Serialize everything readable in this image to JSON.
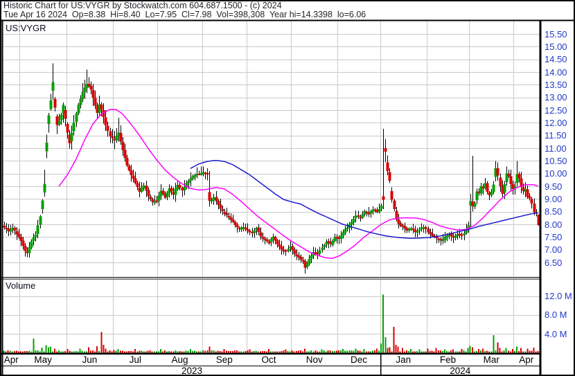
{
  "header": {
    "line1": "Historic Chart for US:VYGR by Stockwatch.com 604.687.1500 - (c) 2024",
    "line2": "Tue Apr 16 2024  Op=8.38  Hi=8.40  Lo=7.95  Cl=7.98  Vol=398,308  Year hi=14.3398  lo=6.06"
  },
  "quote": {
    "date": "Tue Apr 16 2024",
    "open": "8.38",
    "high": "8.40",
    "low": "7.95",
    "close": "7.98",
    "volume": "398,308",
    "year_high": "14.3398",
    "year_low": "6.06"
  },
  "chart": {
    "symbol_label": "US:VYGR",
    "volume_label": "Volume"
  },
  "chart_data": {
    "type": "candlestick",
    "title": "Historic Chart for US:VYGR by Stockwatch.com 604.687.1500 - (c) 2024",
    "subtitle": "Tue Apr 16 2024  Op=8.38  Hi=8.40  Lo=7.95  Cl=7.98  Vol=398,308  Year hi=14.3398  lo=6.06",
    "grid": true,
    "price_axis": {
      "ticks": [
        "15.50",
        "15.00",
        "14.50",
        "14.00",
        "13.50",
        "13.00",
        "12.50",
        "12.00",
        "11.50",
        "11.00",
        "10.50",
        "10.00",
        "9.50",
        "9.00",
        "8.50",
        "8.00",
        "7.50",
        "7.00",
        "6.50"
      ],
      "max": 15.5,
      "min": 6.5,
      "step": 0.5
    },
    "volume_axis": {
      "ticks": [
        {
          "label": "12.0 M",
          "value": 12
        },
        {
          "label": "8.0 M",
          "value": 8
        },
        {
          "label": "4.0 M",
          "value": 4
        }
      ],
      "unit": "millions of shares"
    },
    "x_axis": {
      "month_labels": [
        "Apr",
        "May",
        "Jun",
        "Jul",
        "Aug",
        "Sep",
        "Oct",
        "Nov",
        "Dec",
        "Jan",
        "Feb",
        "Mar",
        "Apr"
      ],
      "month_start_day": [
        0,
        8,
        30,
        52,
        73,
        94,
        115,
        136,
        158,
        178,
        200,
        220,
        241
      ],
      "total_days": 253,
      "year_labels": [
        "2023",
        "2024"
      ],
      "year_split_day": 178,
      "range": "Apr 2023 - Apr 16 2024"
    },
    "representation": "daily close path as piecewise-linear anchors [day_index, estimated_close]; per-day open/high/low detail reconstructed deterministically",
    "close_anchors": [
      [
        0,
        7.9
      ],
      [
        2,
        7.75
      ],
      [
        4,
        7.85
      ],
      [
        6,
        7.6
      ],
      [
        8,
        7.35
      ],
      [
        10,
        6.95
      ],
      [
        11,
        6.88
      ],
      [
        13,
        7.35
      ],
      [
        15,
        7.6
      ],
      [
        17,
        8.3
      ],
      [
        19,
        9.6
      ],
      [
        20,
        11.2
      ],
      [
        21,
        12.3
      ],
      [
        22,
        12.9
      ],
      [
        23,
        13.6
      ],
      [
        24,
        12.6
      ],
      [
        25,
        11.9
      ],
      [
        27,
        12.3
      ],
      [
        28,
        12.7
      ],
      [
        30,
        11.6
      ],
      [
        31,
        11.2
      ],
      [
        33,
        12.0
      ],
      [
        35,
        12.7
      ],
      [
        37,
        13.2
      ],
      [
        39,
        13.55
      ],
      [
        41,
        13.3
      ],
      [
        43,
        12.7
      ],
      [
        44,
        12.4
      ],
      [
        45,
        12.75
      ],
      [
        46,
        12.5
      ],
      [
        48,
        11.9
      ],
      [
        50,
        11.45
      ],
      [
        52,
        11.3
      ],
      [
        54,
        11.6
      ],
      [
        56,
        10.9
      ],
      [
        58,
        10.3
      ],
      [
        60,
        9.95
      ],
      [
        62,
        9.6
      ],
      [
        64,
        9.3
      ],
      [
        66,
        9.55
      ],
      [
        68,
        9.1
      ],
      [
        70,
        8.85
      ],
      [
        72,
        8.95
      ],
      [
        74,
        9.3
      ],
      [
        76,
        9.05
      ],
      [
        78,
        9.4
      ],
      [
        80,
        9.2
      ],
      [
        82,
        9.55
      ],
      [
        84,
        9.35
      ],
      [
        86,
        9.6
      ],
      [
        88,
        9.8
      ],
      [
        90,
        9.95
      ],
      [
        92,
        10.0
      ],
      [
        94,
        10.05
      ],
      [
        96,
        9.95
      ],
      [
        97,
        8.9
      ],
      [
        99,
        9.05
      ],
      [
        101,
        8.75
      ],
      [
        103,
        8.5
      ],
      [
        105,
        8.35
      ],
      [
        107,
        8.2
      ],
      [
        109,
        7.95
      ],
      [
        111,
        7.8
      ],
      [
        113,
        7.9
      ],
      [
        115,
        7.75
      ],
      [
        117,
        7.65
      ],
      [
        119,
        7.85
      ],
      [
        121,
        7.55
      ],
      [
        123,
        7.4
      ],
      [
        125,
        7.3
      ],
      [
        127,
        7.5
      ],
      [
        129,
        7.2
      ],
      [
        131,
        7.0
      ],
      [
        133,
        6.95
      ],
      [
        135,
        7.1
      ],
      [
        137,
        6.85
      ],
      [
        139,
        6.7
      ],
      [
        141,
        6.55
      ],
      [
        142,
        6.3
      ],
      [
        144,
        6.65
      ],
      [
        146,
        6.9
      ],
      [
        148,
        6.8
      ],
      [
        150,
        7.1
      ],
      [
        152,
        7.3
      ],
      [
        154,
        7.2
      ],
      [
        156,
        7.5
      ],
      [
        158,
        7.4
      ],
      [
        160,
        7.7
      ],
      [
        162,
        7.9
      ],
      [
        164,
        8.1
      ],
      [
        166,
        8.35
      ],
      [
        168,
        8.25
      ],
      [
        170,
        8.5
      ],
      [
        172,
        8.45
      ],
      [
        174,
        8.6
      ],
      [
        176,
        8.5
      ],
      [
        178,
        8.75
      ],
      [
        179,
        8.95
      ],
      [
        180,
        10.84
      ],
      [
        181,
        10.1
      ],
      [
        182,
        9.7
      ],
      [
        183,
        9.0
      ],
      [
        184,
        8.6
      ],
      [
        185,
        8.2
      ],
      [
        186,
        8.0
      ],
      [
        188,
        7.9
      ],
      [
        190,
        7.75
      ],
      [
        192,
        7.85
      ],
      [
        194,
        7.7
      ],
      [
        196,
        7.8
      ],
      [
        198,
        7.9
      ],
      [
        200,
        7.7
      ],
      [
        202,
        7.55
      ],
      [
        204,
        7.45
      ],
      [
        206,
        7.35
      ],
      [
        208,
        7.5
      ],
      [
        210,
        7.6
      ],
      [
        212,
        7.5
      ],
      [
        214,
        7.6
      ],
      [
        216,
        7.55
      ],
      [
        218,
        7.8
      ],
      [
        219,
        7.95
      ],
      [
        220,
        8.9
      ],
      [
        221,
        8.7
      ],
      [
        222,
        8.85
      ],
      [
        223,
        9.3
      ],
      [
        224,
        9.2
      ],
      [
        225,
        9.5
      ],
      [
        226,
        9.4
      ],
      [
        227,
        9.6
      ],
      [
        228,
        9.3
      ],
      [
        229,
        9.15
      ],
      [
        230,
        9.3
      ],
      [
        231,
        9.55
      ],
      [
        232,
        10.2
      ],
      [
        233,
        9.9
      ],
      [
        234,
        9.5
      ],
      [
        235,
        9.2
      ],
      [
        236,
        9.6
      ],
      [
        237,
        10.0
      ],
      [
        238,
        9.9
      ],
      [
        239,
        9.6
      ],
      [
        240,
        9.4
      ],
      [
        241,
        9.5
      ],
      [
        242,
        10.0
      ],
      [
        243,
        9.8
      ],
      [
        244,
        9.5
      ],
      [
        245,
        9.3
      ],
      [
        246,
        9.4
      ],
      [
        247,
        9.1
      ],
      [
        248,
        9.0
      ],
      [
        249,
        8.8
      ],
      [
        250,
        8.5
      ],
      [
        251,
        8.45
      ],
      [
        252,
        7.98
      ]
    ],
    "special_bars": {
      "19": {
        "h": 10.15
      },
      "23": {
        "h": 14.34
      },
      "39": {
        "h": 14.1
      },
      "46": {
        "o": 12.72
      },
      "54": {
        "h": 12.2
      },
      "97": {
        "h": 10.1,
        "l": 8.7
      },
      "142": {
        "l": 6.06
      },
      "179": {
        "o": 9.1,
        "h": 11.76,
        "l": 8.6
      },
      "180": {
        "o": 11.0,
        "h": 11.35,
        "l": 10.45
      },
      "220": {
        "o": 8.75,
        "h": 9.2,
        "l": 7.9
      },
      "221": {
        "h": 10.7,
        "l": 8.5
      },
      "232": {
        "h": 10.5
      },
      "242": {
        "h": 10.5
      },
      "252": {
        "o": 8.38,
        "h": 8.4,
        "l": 7.95,
        "c": 7.98
      }
    },
    "ma_short": {
      "name": "moving-average-fast",
      "color": "#ff00ff",
      "anchors": [
        [
          26,
          9.5
        ],
        [
          30,
          9.95
        ],
        [
          34,
          10.55
        ],
        [
          38,
          11.3
        ],
        [
          42,
          11.95
        ],
        [
          46,
          12.35
        ],
        [
          50,
          12.52
        ],
        [
          53,
          12.52
        ],
        [
          56,
          12.35
        ],
        [
          60,
          11.95
        ],
        [
          64,
          11.5
        ],
        [
          68,
          11.0
        ],
        [
          72,
          10.55
        ],
        [
          76,
          10.15
        ],
        [
          80,
          9.85
        ],
        [
          84,
          9.6
        ],
        [
          88,
          9.42
        ],
        [
          92,
          9.35
        ],
        [
          96,
          9.38
        ],
        [
          100,
          9.45
        ],
        [
          104,
          9.4
        ],
        [
          108,
          9.18
        ],
        [
          112,
          8.9
        ],
        [
          116,
          8.6
        ],
        [
          120,
          8.3
        ],
        [
          124,
          8.05
        ],
        [
          128,
          7.8
        ],
        [
          132,
          7.55
        ],
        [
          136,
          7.32
        ],
        [
          140,
          7.12
        ],
        [
          144,
          6.92
        ],
        [
          148,
          6.78
        ],
        [
          152,
          6.68
        ],
        [
          155,
          6.66
        ],
        [
          158,
          6.75
        ],
        [
          162,
          6.95
        ],
        [
          166,
          7.2
        ],
        [
          170,
          7.5
        ],
        [
          174,
          7.75
        ],
        [
          178,
          8.0
        ],
        [
          182,
          8.18
        ],
        [
          186,
          8.25
        ],
        [
          190,
          8.26
        ],
        [
          194,
          8.25
        ],
        [
          198,
          8.2
        ],
        [
          202,
          8.08
        ],
        [
          206,
          7.93
        ],
        [
          210,
          7.84
        ],
        [
          214,
          7.78
        ],
        [
          218,
          7.8
        ],
        [
          222,
          7.95
        ],
        [
          226,
          8.25
        ],
        [
          230,
          8.6
        ],
        [
          234,
          8.95
        ],
        [
          238,
          9.25
        ],
        [
          242,
          9.45
        ],
        [
          246,
          9.56
        ],
        [
          250,
          9.56
        ],
        [
          252,
          9.5
        ]
      ]
    },
    "ma_long": {
      "name": "moving-average-slow",
      "color": "#1a1acc",
      "anchors": [
        [
          88,
          10.2
        ],
        [
          92,
          10.38
        ],
        [
          96,
          10.48
        ],
        [
          100,
          10.52
        ],
        [
          104,
          10.48
        ],
        [
          108,
          10.35
        ],
        [
          112,
          10.15
        ],
        [
          116,
          9.95
        ],
        [
          120,
          9.7
        ],
        [
          124,
          9.45
        ],
        [
          128,
          9.2
        ],
        [
          132,
          8.98
        ],
        [
          136,
          8.88
        ],
        [
          140,
          8.8
        ],
        [
          144,
          8.62
        ],
        [
          148,
          8.45
        ],
        [
          152,
          8.3
        ],
        [
          156,
          8.15
        ],
        [
          160,
          8.0
        ],
        [
          164,
          7.9
        ],
        [
          168,
          7.8
        ],
        [
          172,
          7.7
        ],
        [
          176,
          7.62
        ],
        [
          180,
          7.55
        ],
        [
          184,
          7.5
        ],
        [
          188,
          7.47
        ],
        [
          192,
          7.45
        ],
        [
          196,
          7.46
        ],
        [
          200,
          7.48
        ],
        [
          204,
          7.52
        ],
        [
          208,
          7.58
        ],
        [
          212,
          7.66
        ],
        [
          216,
          7.74
        ],
        [
          220,
          7.82
        ],
        [
          224,
          7.92
        ],
        [
          228,
          8.0
        ],
        [
          232,
          8.08
        ],
        [
          236,
          8.16
        ],
        [
          240,
          8.24
        ],
        [
          244,
          8.32
        ],
        [
          248,
          8.4
        ],
        [
          252,
          8.46
        ]
      ]
    },
    "volume_base_m": [
      0.13,
      0.55
    ],
    "volume_events_m": [
      [
        14,
        3.0
      ],
      [
        18,
        1.1
      ],
      [
        20,
        1.6
      ],
      [
        21,
        1.2
      ],
      [
        22,
        1.3
      ],
      [
        24,
        0.9
      ],
      [
        30,
        0.8
      ],
      [
        36,
        0.9
      ],
      [
        40,
        1.2
      ],
      [
        44,
        1.4
      ],
      [
        46,
        4.4
      ],
      [
        47,
        1.7
      ],
      [
        48,
        0.9
      ],
      [
        54,
        0.8
      ],
      [
        62,
        0.8
      ],
      [
        74,
        0.8
      ],
      [
        88,
        0.8
      ],
      [
        97,
        1.3
      ],
      [
        104,
        0.8
      ],
      [
        116,
        0.7
      ],
      [
        125,
        0.8
      ],
      [
        133,
        0.7
      ],
      [
        142,
        0.9
      ],
      [
        150,
        0.7
      ],
      [
        160,
        0.8
      ],
      [
        166,
        0.9
      ],
      [
        170,
        0.8
      ],
      [
        176,
        0.9
      ],
      [
        178,
        2.0
      ],
      [
        179,
        12.3
      ],
      [
        180,
        3.3
      ],
      [
        181,
        1.0
      ],
      [
        182,
        1.2
      ],
      [
        184,
        5.5
      ],
      [
        185,
        1.7
      ],
      [
        186,
        1.3
      ],
      [
        188,
        1.0
      ],
      [
        192,
        0.8
      ],
      [
        196,
        0.7
      ],
      [
        200,
        0.9
      ],
      [
        204,
        1.0
      ],
      [
        208,
        0.7
      ],
      [
        212,
        0.7
      ],
      [
        216,
        0.8
      ],
      [
        219,
        1.0
      ],
      [
        220,
        1.5
      ],
      [
        221,
        1.2
      ],
      [
        224,
        0.8
      ],
      [
        226,
        0.9
      ],
      [
        231,
        3.7
      ],
      [
        233,
        2.2
      ],
      [
        234,
        1.0
      ],
      [
        237,
        1.0
      ],
      [
        240,
        0.8
      ],
      [
        242,
        1.3
      ],
      [
        244,
        1.0
      ],
      [
        247,
        0.9
      ],
      [
        250,
        1.1
      ],
      [
        252,
        0.4
      ]
    ],
    "colors": {
      "up": "#00a100",
      "down": "#d90000",
      "wick": "#000000",
      "grid": "#c9c9c9",
      "axis_text": "#2038c8",
      "border": "#000000",
      "ma_short": "#ff00ff",
      "ma_long": "#1a1acc"
    }
  }
}
